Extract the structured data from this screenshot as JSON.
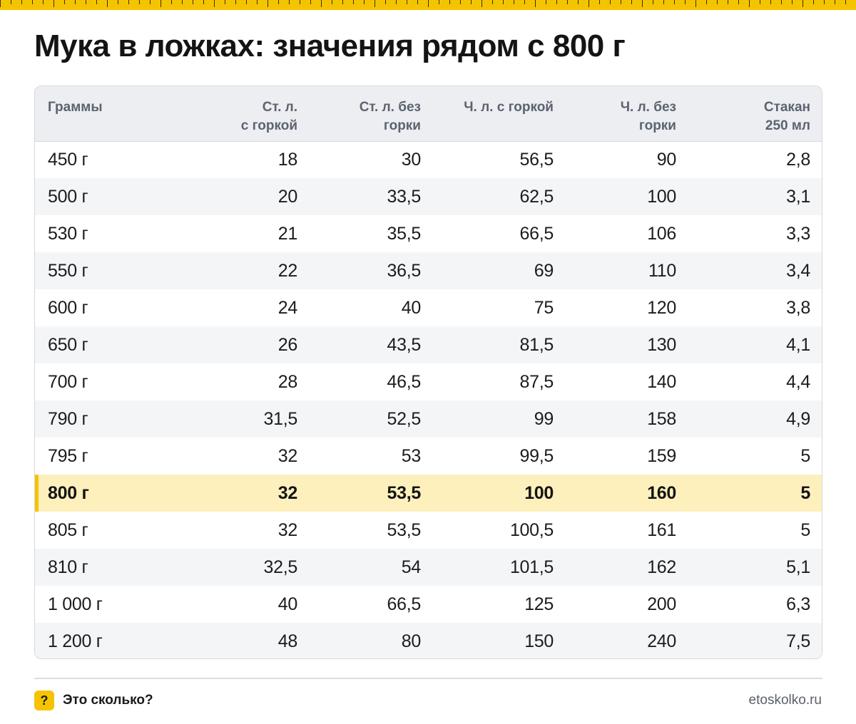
{
  "page": {
    "title": "Мука в ложках: значения рядом с 800 г",
    "accent_color": "#f5c400",
    "highlight_row_color": "#fdf0bd"
  },
  "table": {
    "headers": [
      [
        "Граммы"
      ],
      [
        "Ст. л.",
        "с горкой"
      ],
      [
        "Ст. л. без",
        "горки"
      ],
      [
        "Ч. л. с горкой"
      ],
      [
        "Ч. л. без",
        "горки"
      ],
      [
        "Стакан",
        "250 мл"
      ]
    ],
    "highlighted_row": 9,
    "rows": [
      [
        "450 г",
        "18",
        "30",
        "56,5",
        "90",
        "2,8"
      ],
      [
        "500 г",
        "20",
        "33,5",
        "62,5",
        "100",
        "3,1"
      ],
      [
        "530 г",
        "21",
        "35,5",
        "66,5",
        "106",
        "3,3"
      ],
      [
        "550 г",
        "22",
        "36,5",
        "69",
        "110",
        "3,4"
      ],
      [
        "600 г",
        "24",
        "40",
        "75",
        "120",
        "3,8"
      ],
      [
        "650 г",
        "26",
        "43,5",
        "81,5",
        "130",
        "4,1"
      ],
      [
        "700 г",
        "28",
        "46,5",
        "87,5",
        "140",
        "4,4"
      ],
      [
        "790 г",
        "31,5",
        "52,5",
        "99",
        "158",
        "4,9"
      ],
      [
        "795 г",
        "32",
        "53",
        "99,5",
        "159",
        "5"
      ],
      [
        "800 г",
        "32",
        "53,5",
        "100",
        "160",
        "5"
      ],
      [
        "805 г",
        "32",
        "53,5",
        "100,5",
        "161",
        "5"
      ],
      [
        "810 г",
        "32,5",
        "54",
        "101,5",
        "162",
        "5,1"
      ],
      [
        "1 000 г",
        "40",
        "66,5",
        "125",
        "200",
        "6,3"
      ],
      [
        "1 200 г",
        "48",
        "80",
        "150",
        "240",
        "7,5"
      ]
    ]
  },
  "footer": {
    "badge_glyph": "?",
    "brand": "Это сколько?",
    "site": "etoskolko.ru"
  }
}
